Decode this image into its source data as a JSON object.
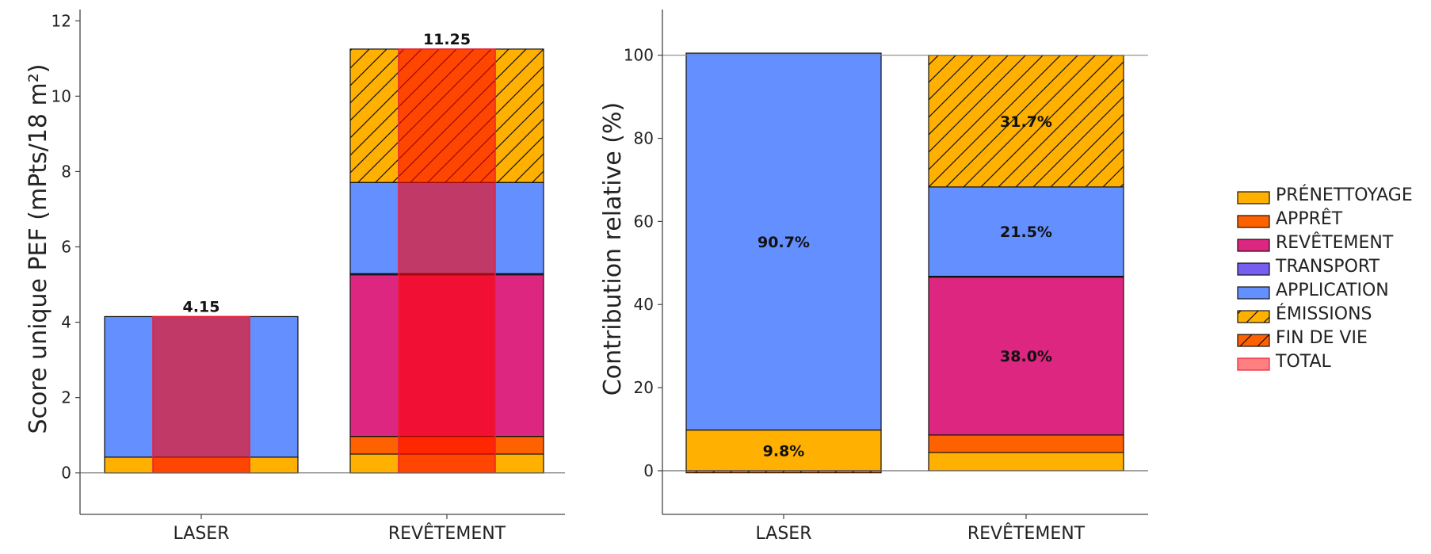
{
  "chart_data": [
    {
      "type": "bar",
      "stacked": true,
      "categories": [
        "LASER",
        "REVÊTEMENT"
      ],
      "ylabel": "Score unique PEF (mPts/18 m²)",
      "ylim": [
        -1.1,
        12.3
      ],
      "yticks": [
        0,
        2,
        4,
        6,
        8,
        10,
        12
      ],
      "series": [
        {
          "name": "PRÉNETTOYAGE",
          "values": [
            0.42,
            0.5
          ]
        },
        {
          "name": "APPRÊT",
          "values": [
            0,
            0.47
          ]
        },
        {
          "name": "REVÊTEMENT",
          "values": [
            0,
            4.29
          ]
        },
        {
          "name": "TRANSPORT",
          "values": [
            0,
            0.03
          ]
        },
        {
          "name": "APPLICATION",
          "values": [
            3.73,
            2.42
          ]
        },
        {
          "name": "ÉMISSIONS",
          "values": [
            0,
            3.54
          ]
        },
        {
          "name": "FIN DE VIE",
          "values": [
            0,
            0
          ]
        },
        {
          "name": "TOTAL",
          "values": [
            4.15,
            11.25
          ]
        }
      ],
      "total_labels": [
        "4.15",
        "11.25"
      ],
      "grid": false
    },
    {
      "type": "bar",
      "stacked": true,
      "categories": [
        "LASER",
        "REVÊTEMENT"
      ],
      "ylabel": "Contribution relative (%)",
      "ylim": [
        -10.5,
        111
      ],
      "yticks": [
        0,
        20,
        40,
        60,
        80,
        100
      ],
      "series": [
        {
          "name": "PRÉNETTOYAGE",
          "values": [
            9.8,
            4.4
          ]
        },
        {
          "name": "APPRÊT",
          "values": [
            0,
            4.2
          ]
        },
        {
          "name": "REVÊTEMENT",
          "values": [
            0,
            38.0
          ]
        },
        {
          "name": "TRANSPORT",
          "values": [
            0,
            0.2
          ]
        },
        {
          "name": "APPLICATION",
          "values": [
            90.7,
            21.5
          ]
        },
        {
          "name": "ÉMISSIONS",
          "values": [
            0,
            31.7
          ]
        },
        {
          "name": "FIN DE VIE",
          "values": [
            -0.5,
            0
          ]
        }
      ],
      "segment_labels": [
        {
          "category": "LASER",
          "series": "PRÉNETTOYAGE",
          "text": "9.8%"
        },
        {
          "category": "LASER",
          "series": "APPLICATION",
          "text": "90.7%"
        },
        {
          "category": "REVÊTEMENT",
          "series": "REVÊTEMENT",
          "text": "38.0%"
        },
        {
          "category": "REVÊTEMENT",
          "series": "APPLICATION",
          "text": "21.5%"
        },
        {
          "category": "REVÊTEMENT",
          "series": "ÉMISSIONS",
          "text": "31.7%"
        }
      ],
      "reference_line": 100,
      "grid": false
    }
  ],
  "legend": {
    "placement": "right",
    "items": [
      {
        "label": "PRÉNETTOYAGE",
        "color": "#FFB000",
        "hatch": false
      },
      {
        "label": "APPRÊT",
        "color": "#FE6100",
        "hatch": false
      },
      {
        "label": "REVÊTEMENT",
        "color": "#DC267F",
        "hatch": false
      },
      {
        "label": "TRANSPORT",
        "color": "#785EF0",
        "hatch": false
      },
      {
        "label": "APPLICATION",
        "color": "#648FFF",
        "hatch": false
      },
      {
        "label": "ÉMISSIONS",
        "color": "#FFB000",
        "hatch": true
      },
      {
        "label": "FIN DE VIE",
        "color": "#FE6100",
        "hatch": true
      },
      {
        "label": "TOTAL",
        "color": "#FF8080",
        "hatch": false
      }
    ]
  },
  "colors": {
    "PRÉNETTOYAGE": "#FFB000",
    "APPRÊT": "#FE6100",
    "REVÊTEMENT": "#DC267F",
    "TRANSPORT": "#785EF0",
    "APPLICATION": "#648FFF",
    "ÉMISSIONS": "#FFB000",
    "FIN DE VIE": "#FE6100",
    "TOTAL": "#FF0000",
    "TOTAL_edge": "#E8203A"
  }
}
